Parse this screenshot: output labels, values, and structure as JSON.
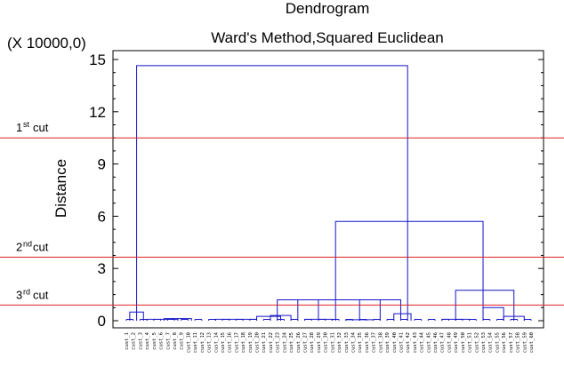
{
  "chart_data": {
    "type": "dendrogram",
    "title": "Dendrogram",
    "subtitle": "Ward's Method,Squared Euclidean",
    "multiplier_label": "(X 10000,0)",
    "ylabel": "Distance",
    "ylim": [
      0,
      15.5
    ],
    "yticks": [
      0,
      3,
      6,
      9,
      12,
      15
    ],
    "ytick_labels": [
      "0",
      "3",
      "6",
      "9",
      "12",
      "15"
    ],
    "cut_lines": [
      {
        "ordinal": "1",
        "suffix": "st",
        "word": "cut",
        "value": 10.5,
        "color": "#e02020"
      },
      {
        "ordinal": "2",
        "suffix": "nd",
        "word": "cut",
        "value": 3.65,
        "color": "#e02020"
      },
      {
        "ordinal": "3",
        "suffix": "rd",
        "word": "cut",
        "value": 0.9,
        "color": "#e02020"
      }
    ],
    "link_color": "#1414c8",
    "leaf_count": 60,
    "leaf_labels": [
      "cust_1",
      "cust_2",
      "cust_3",
      "cust_4",
      "cust_5",
      "cust_6",
      "cust_7",
      "cust_8",
      "cust_9",
      "cust_10",
      "cust_11",
      "cust_12",
      "cust_13",
      "cust_14",
      "cust_15",
      "cust_16",
      "cust_17",
      "cust_18",
      "cust_19",
      "cust_20",
      "cust_21",
      "cust_22",
      "cust_23",
      "cust_24",
      "cust_25",
      "cust_26",
      "cust_27",
      "cust_28",
      "cust_29",
      "cust_30",
      "cust_31",
      "cust_32",
      "cust_33",
      "cust_34",
      "cust_35",
      "cust_36",
      "cust_37",
      "cust_38",
      "cust_39",
      "cust_40",
      "cust_41",
      "cust_42",
      "cust_43",
      "cust_44",
      "cust_45",
      "cust_46",
      "cust_47",
      "cust_48",
      "cust_49",
      "cust_50",
      "cust_51",
      "cust_52",
      "cust_53",
      "cust_54",
      "cust_55",
      "cust_56",
      "cust_57",
      "cust_58",
      "cust_59",
      "cust_60"
    ],
    "merges": [
      {
        "left": 1.5,
        "right": 3.5,
        "height": 0.5
      },
      {
        "left": 6.5,
        "right": 10.5,
        "height": 0.12
      },
      {
        "left": 4.0,
        "right": 8.5,
        "height": 0.08
      },
      {
        "left": 14.0,
        "right": 20.0,
        "height": 0.08
      },
      {
        "left": 22.0,
        "right": 25.0,
        "height": 0.3
      },
      {
        "left": 20.0,
        "right": 23.5,
        "height": 0.25
      },
      {
        "left": 27.0,
        "right": 31.0,
        "height": 0.08
      },
      {
        "left": 23.0,
        "right": 29.0,
        "height": 1.2
      },
      {
        "left": 33.0,
        "right": 37.0,
        "height": 0.06
      },
      {
        "left": 40.0,
        "right": 42.5,
        "height": 0.4
      },
      {
        "left": 35.0,
        "right": 41.0,
        "height": 1.2
      },
      {
        "left": 26.0,
        "right": 38.0,
        "height": 1.2
      },
      {
        "left": 47.0,
        "right": 51.0,
        "height": 0.08
      },
      {
        "left": 53.0,
        "right": 56.0,
        "height": 0.75
      },
      {
        "left": 56.0,
        "right": 59.0,
        "height": 0.25
      },
      {
        "left": 49.0,
        "right": 57.5,
        "height": 1.75
      },
      {
        "left": 31.5,
        "right": 53.0,
        "height": 5.7
      },
      {
        "left": 2.5,
        "right": 42.0,
        "height": 14.65
      }
    ]
  }
}
